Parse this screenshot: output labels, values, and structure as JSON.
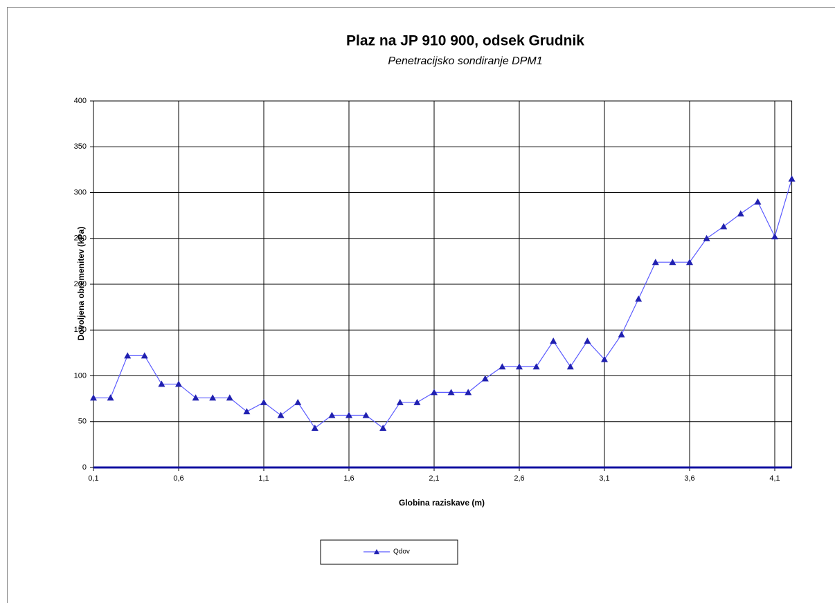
{
  "chart_data": {
    "type": "line",
    "title": "Plaz na JP 910 900, odsek Grudnik",
    "subtitle": "Penetracijsko sondiranje DPM1",
    "x_label": "Globina raziskave (m)",
    "y_label": "Dovoljena obremenitev (kPa)",
    "x": [
      0.1,
      0.2,
      0.3,
      0.4,
      0.5,
      0.6,
      0.7,
      0.8,
      0.9,
      1.0,
      1.1,
      1.2,
      1.3,
      1.4,
      1.5,
      1.6,
      1.7,
      1.8,
      1.9,
      2.0,
      2.1,
      2.2,
      2.3,
      2.4,
      2.5,
      2.6,
      2.7,
      2.8,
      2.9,
      3.0,
      3.1,
      3.2,
      3.3,
      3.4,
      3.5,
      3.6,
      3.7,
      3.8,
      3.9,
      4.0,
      4.1,
      4.2
    ],
    "series": [
      {
        "name": "Qdov",
        "color": "#2020b0",
        "values": [
          76,
          76,
          122,
          122,
          91,
          91,
          76,
          76,
          76,
          61,
          71,
          57,
          71,
          43,
          57,
          57,
          57,
          43,
          71,
          71,
          82,
          82,
          82,
          97,
          110,
          110,
          110,
          138,
          110,
          138,
          118,
          145,
          184,
          224,
          224,
          224,
          250,
          263,
          277,
          290,
          252,
          315
        ]
      }
    ],
    "xlim": [
      0.1,
      4.2
    ],
    "xticks": [
      {
        "value": 0.1,
        "label": "0,1"
      },
      {
        "value": 0.6,
        "label": "0,6"
      },
      {
        "value": 1.1,
        "label": "1,1"
      },
      {
        "value": 1.6,
        "label": "1,6"
      },
      {
        "value": 2.1,
        "label": "2,1"
      },
      {
        "value": 2.6,
        "label": "2,6"
      },
      {
        "value": 3.1,
        "label": "3,1"
      },
      {
        "value": 3.6,
        "label": "3,6"
      },
      {
        "value": 4.1,
        "label": "4,1"
      }
    ],
    "ylim": [
      0,
      400
    ],
    "yticks": [
      0,
      50,
      100,
      150,
      200,
      250,
      300,
      350,
      400
    ],
    "grid": true,
    "legend": "bottom"
  }
}
